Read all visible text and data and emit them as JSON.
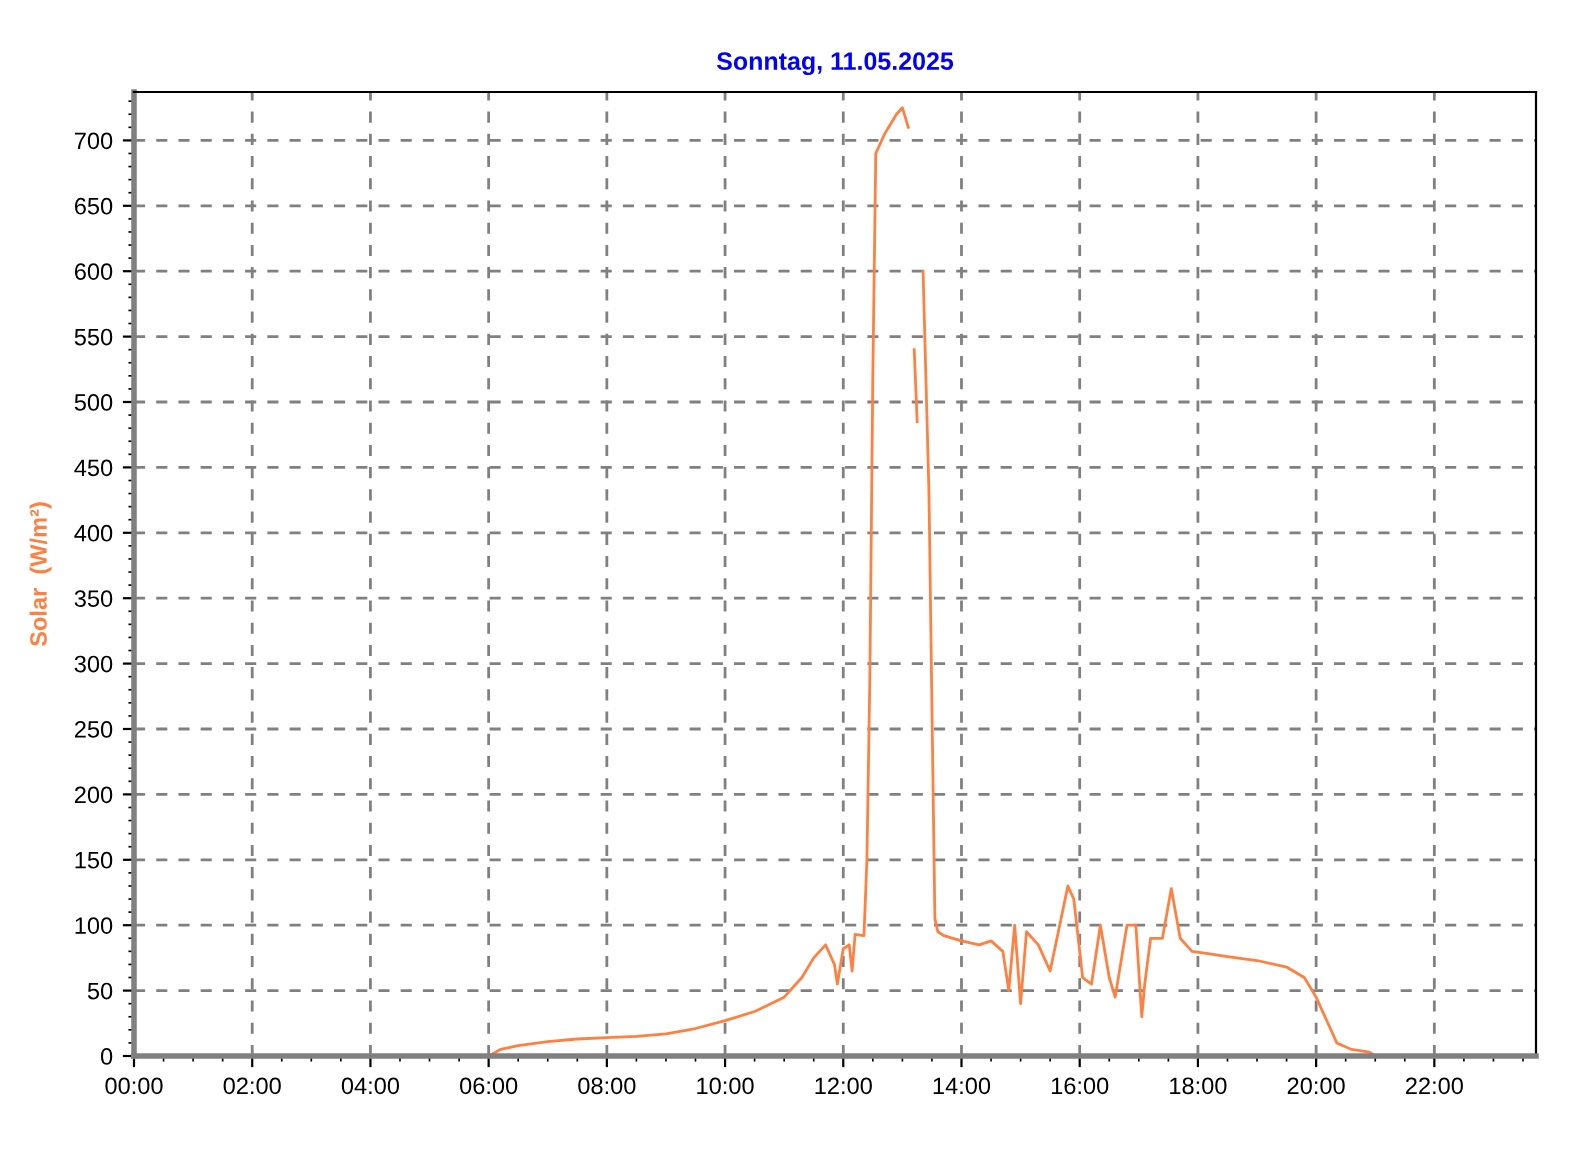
{
  "chart_data": {
    "type": "line",
    "title": "Sonntag, 11.05.2025",
    "ylabel": "Solar  (W/m²)",
    "xlim": [
      0,
      23.72
    ],
    "ylim": [
      0,
      737
    ],
    "xticks": [
      {
        "value": 0,
        "label": "00:00"
      },
      {
        "value": 2,
        "label": "02:00"
      },
      {
        "value": 4,
        "label": "04:00"
      },
      {
        "value": 6,
        "label": "06:00"
      },
      {
        "value": 8,
        "label": "08:00"
      },
      {
        "value": 10,
        "label": "10:00"
      },
      {
        "value": 12,
        "label": "12:00"
      },
      {
        "value": 14,
        "label": "14:00"
      },
      {
        "value": 16,
        "label": "16:00"
      },
      {
        "value": 18,
        "label": "18:00"
      },
      {
        "value": 20,
        "label": "20:00"
      },
      {
        "value": 22,
        "label": "22:00"
      }
    ],
    "yticks": [
      0,
      50,
      100,
      150,
      200,
      250,
      300,
      350,
      400,
      450,
      500,
      550,
      600,
      650,
      700
    ],
    "grid": true,
    "marker": "none",
    "line_style": "solid",
    "series": [
      {
        "color": "#ff8040",
        "x": [
          0,
          6.0,
          6.2,
          6.5,
          7,
          7.5,
          8,
          8.5,
          9,
          9.5,
          10,
          10.5,
          11,
          11.3,
          11.5,
          11.7,
          11.85,
          11.9,
          12.0,
          12.1,
          12.15,
          12.2,
          12.35,
          12.4,
          12.45,
          12.5,
          12.55,
          12.7,
          12.9,
          13.0,
          13.1,
          13.15,
          13.2,
          13.25,
          13.3,
          13.35,
          13.45,
          13.55,
          13.6,
          13.7,
          14.0,
          14.3,
          14.5,
          14.7,
          14.8,
          14.9,
          15.0,
          15.1,
          15.3,
          15.5,
          15.8,
          15.9,
          16.05,
          16.2,
          16.35,
          16.5,
          16.6,
          16.8,
          16.95,
          17.05,
          17.1,
          17.2,
          17.4,
          17.55,
          17.7,
          17.9,
          18.2,
          18.5,
          19,
          19.5,
          19.8,
          20.0,
          20.2,
          20.35,
          20.6,
          20.9,
          21.0,
          23.7
        ],
        "values": [
          0,
          0,
          5,
          8,
          11,
          13,
          14,
          15,
          17,
          21,
          27,
          34,
          45,
          60,
          75,
          85,
          70,
          55,
          82,
          85,
          65,
          93,
          92,
          150,
          290,
          520,
          690,
          705,
          720,
          725,
          710,
          null,
          540,
          485,
          null,
          600,
          430,
          105,
          95,
          92,
          88,
          85,
          88,
          80,
          50,
          100,
          40,
          95,
          85,
          65,
          130,
          120,
          60,
          55,
          100,
          60,
          45,
          100,
          100,
          30,
          55,
          90,
          90,
          128,
          90,
          80,
          78,
          76,
          73,
          68,
          60,
          45,
          25,
          10,
          5,
          3,
          0,
          0
        ]
      }
    ]
  }
}
